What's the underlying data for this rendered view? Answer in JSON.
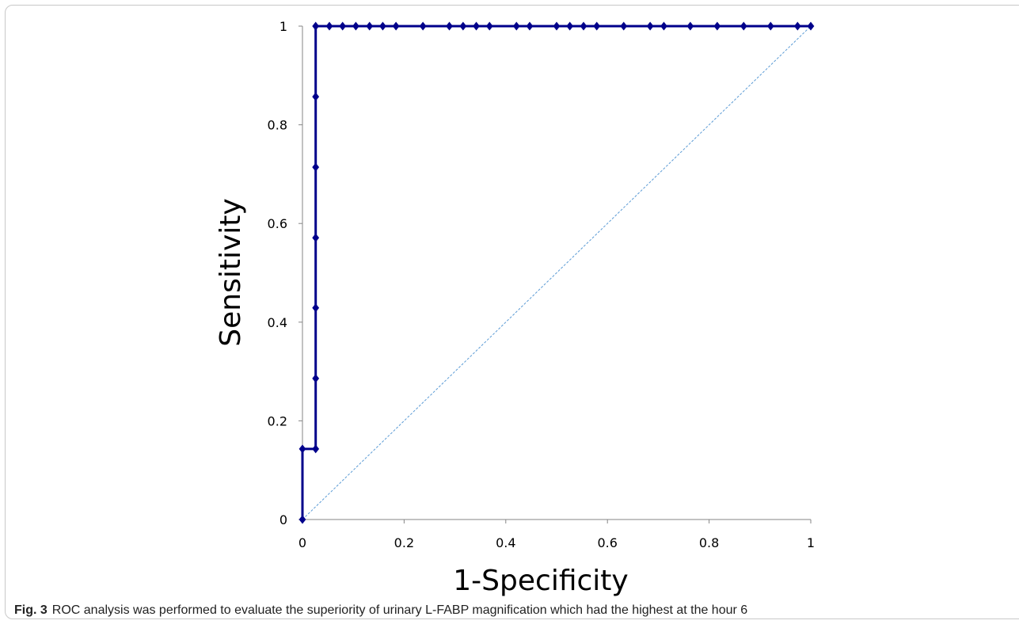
{
  "chart_data": {
    "type": "line",
    "xlabel": "1-Specificity",
    "ylabel": "Sensitivity",
    "xlim": [
      0,
      1
    ],
    "ylim": [
      0,
      1
    ],
    "xticks": [
      "0",
      "0.2",
      "0.4",
      "0.6",
      "0.8",
      "1"
    ],
    "yticks": [
      "0",
      "0.2",
      "0.4",
      "0.6",
      "0.8",
      "1"
    ],
    "grid": false,
    "legend": "none",
    "series": [
      {
        "x": [
          0,
          0,
          0.026,
          0.026,
          0.026,
          0.026,
          0.026,
          0.026,
          0.026,
          0.053,
          0.079,
          0.105,
          0.132,
          0.158,
          0.184,
          0.237,
          0.289,
          0.316,
          0.342,
          0.368,
          0.421,
          0.447,
          0.5,
          0.526,
          0.553,
          0.579,
          0.632,
          0.684,
          0.711,
          0.763,
          0.816,
          0.868,
          0.921,
          0.974,
          1.0
        ],
        "y": [
          0,
          0.143,
          0.143,
          0.286,
          0.429,
          0.571,
          0.714,
          0.857,
          1,
          1,
          1,
          1,
          1,
          1,
          1,
          1,
          1,
          1,
          1,
          1,
          1,
          1,
          1,
          1,
          1,
          1,
          1,
          1,
          1,
          1,
          1,
          1,
          1,
          1,
          1
        ],
        "color": "#00008b"
      },
      {
        "x": [
          0,
          1
        ],
        "y": [
          0,
          1
        ],
        "color": "#5b9bd5",
        "style": "dashed"
      }
    ]
  },
  "caption": {
    "label": "Fig. 3",
    "text": "ROC analysis was performed to evaluate the superiority of urinary L-FABP magnification which had the highest at the hour 6"
  }
}
